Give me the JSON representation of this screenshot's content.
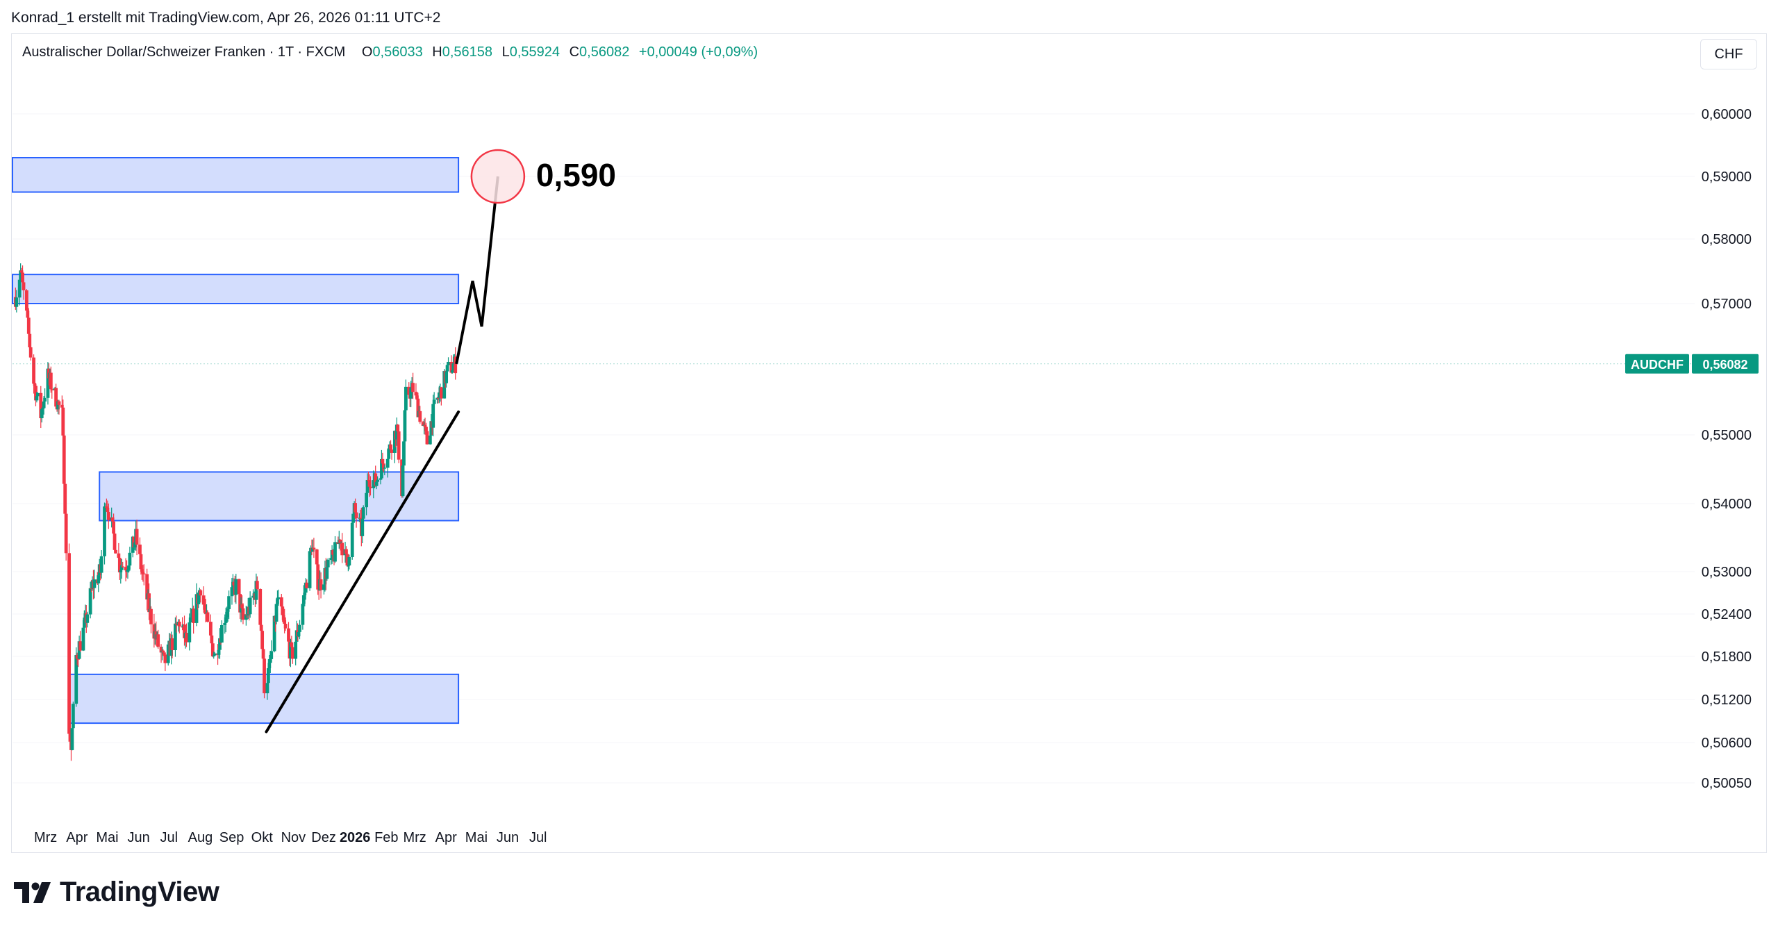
{
  "attribution": "Konrad_1 erstellt mit TradingView.com, Apr 26, 2026 01:11 UTC+2",
  "legend": {
    "symbol_line": "Australischer Dollar/Schweizer Franken · 1T · FXCM",
    "open_label": "O",
    "open": "0,56033",
    "high_label": "H",
    "high": "0,56158",
    "low_label": "L",
    "low": "0,55924",
    "close_label": "C",
    "close": "0,56082",
    "change": "+0,00049 (+0,09%)"
  },
  "currency_button": "CHF",
  "price_tag": {
    "symbol": "AUDCHF",
    "price": "0,56082"
  },
  "target_label": "0,590",
  "brand": "TradingView",
  "colors": {
    "up": "#089981",
    "down": "#f23645",
    "zone_fill": "#d1dbfd",
    "zone_stroke": "#2962ff",
    "tag": "#089981",
    "target": "#f23645"
  },
  "chart_data": {
    "type": "candlestick",
    "symbol": "AUDCHF",
    "interval": "1T",
    "y_ticks": [
      "0,60000",
      "0,59000",
      "0,58000",
      "0,57000",
      "0,55000",
      "0,54000",
      "0,53000",
      "0,52400",
      "0,51800",
      "0,51200",
      "0,50600",
      "0,50050"
    ],
    "x_ticks": [
      "Mrz",
      "Apr",
      "Mai",
      "Jun",
      "Jul",
      "Aug",
      "Sep",
      "Okt",
      "Nov",
      "Dez",
      "2026",
      "Feb",
      "Mrz",
      "Apr",
      "Mai",
      "Jun",
      "Jul"
    ],
    "price_path": [
      [
        "2025-02-13",
        0.571
      ],
      [
        "2025-02-18",
        0.575
      ],
      [
        "2025-02-24",
        0.568
      ],
      [
        "2025-03-03",
        0.558
      ],
      [
        "2025-03-10",
        0.553
      ],
      [
        "2025-03-17",
        0.559
      ],
      [
        "2025-03-24",
        0.556
      ],
      [
        "2025-03-31",
        0.553
      ],
      [
        "2025-04-03",
        0.54
      ],
      [
        "2025-04-07",
        0.508
      ],
      [
        "2025-04-09",
        0.505
      ],
      [
        "2025-04-14",
        0.518
      ],
      [
        "2025-04-22",
        0.522
      ],
      [
        "2025-04-30",
        0.528
      ],
      [
        "2025-05-08",
        0.53
      ],
      [
        "2025-05-13",
        0.541
      ],
      [
        "2025-05-20",
        0.536
      ],
      [
        "2025-05-27",
        0.531
      ],
      [
        "2025-06-03",
        0.531
      ],
      [
        "2025-06-12",
        0.535
      ],
      [
        "2025-06-18",
        0.53
      ],
      [
        "2025-06-26",
        0.524
      ],
      [
        "2025-07-03",
        0.52
      ],
      [
        "2025-07-10",
        0.517
      ],
      [
        "2025-07-18",
        0.52
      ],
      [
        "2025-07-25",
        0.523
      ],
      [
        "2025-08-01",
        0.52
      ],
      [
        "2025-08-08",
        0.524
      ],
      [
        "2025-08-15",
        0.528
      ],
      [
        "2025-08-22",
        0.522
      ],
      [
        "2025-08-29",
        0.518
      ],
      [
        "2025-09-05",
        0.522
      ],
      [
        "2025-09-12",
        0.526
      ],
      [
        "2025-09-19",
        0.528
      ],
      [
        "2025-09-26",
        0.523
      ],
      [
        "2025-10-03",
        0.525
      ],
      [
        "2025-10-10",
        0.528
      ],
      [
        "2025-10-14",
        0.522
      ],
      [
        "2025-10-17",
        0.514
      ],
      [
        "2025-10-22",
        0.516
      ],
      [
        "2025-10-30",
        0.526
      ],
      [
        "2025-11-06",
        0.522
      ],
      [
        "2025-11-13",
        0.518
      ],
      [
        "2025-11-20",
        0.522
      ],
      [
        "2025-11-27",
        0.528
      ],
      [
        "2025-12-03",
        0.534
      ],
      [
        "2025-12-10",
        0.528
      ],
      [
        "2025-12-17",
        0.53
      ],
      [
        "2025-12-24",
        0.532
      ],
      [
        "2025-12-31",
        0.535
      ],
      [
        "2026-01-07",
        0.531
      ],
      [
        "2026-01-14",
        0.539
      ],
      [
        "2026-01-21",
        0.536
      ],
      [
        "2026-01-28",
        0.544
      ],
      [
        "2026-02-04",
        0.543
      ],
      [
        "2026-02-11",
        0.546
      ],
      [
        "2026-02-18",
        0.548
      ],
      [
        "2026-02-25",
        0.551
      ],
      [
        "2026-03-02",
        0.542
      ],
      [
        "2026-03-06",
        0.556
      ],
      [
        "2026-03-13",
        0.557
      ],
      [
        "2026-03-20",
        0.553
      ],
      [
        "2026-03-27",
        0.549
      ],
      [
        "2026-04-03",
        0.554
      ],
      [
        "2026-04-10",
        0.557
      ],
      [
        "2026-04-17",
        0.56
      ],
      [
        "2026-04-24",
        0.5608
      ]
    ],
    "zones": [
      {
        "from": "2025-02-10",
        "to": "2026-04-27",
        "low": 0.5875,
        "high": 0.593
      },
      {
        "from": "2025-02-10",
        "to": "2026-04-27",
        "low": 0.57,
        "high": 0.5745
      },
      {
        "from": "2025-05-07",
        "to": "2026-04-27",
        "low": 0.5375,
        "high": 0.5446
      },
      {
        "from": "2025-04-07",
        "to": "2026-04-27",
        "low": 0.5087,
        "high": 0.5155
      }
    ],
    "trendline": [
      [
        "2025-10-19",
        0.5075
      ],
      [
        "2026-04-27",
        0.5535
      ]
    ],
    "projection": [
      [
        "2026-04-25",
        0.5608
      ],
      [
        "2026-05-11",
        0.5735
      ],
      [
        "2026-05-20",
        0.5665
      ],
      [
        "2026-06-05",
        0.59
      ]
    ],
    "target": {
      "date": "2026-06-05",
      "price": 0.59
    }
  }
}
